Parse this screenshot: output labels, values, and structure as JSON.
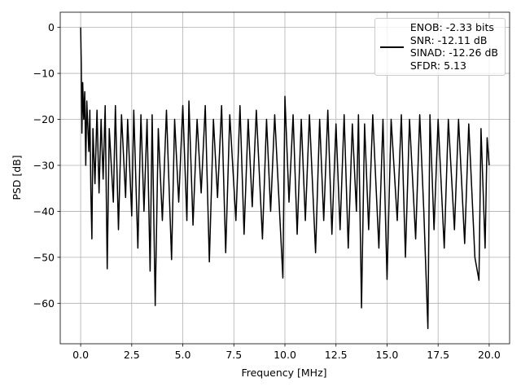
{
  "chart_data": {
    "type": "line",
    "xlabel": "Frequency [MHz]",
    "ylabel": "PSD [dB]",
    "x": [
      0,
      0.03,
      0.06,
      0.1,
      0.15,
      0.2,
      0.25,
      0.3,
      0.4,
      0.45,
      0.5,
      0.55,
      0.6,
      0.7,
      0.8,
      0.9,
      1.0,
      1.1,
      1.2,
      1.3,
      1.4,
      1.6,
      1.7,
      1.85,
      2.0,
      2.2,
      2.3,
      2.5,
      2.6,
      2.8,
      2.95,
      3.1,
      3.25,
      3.4,
      3.5,
      3.65,
      3.8,
      4.0,
      4.2,
      4.45,
      4.6,
      4.8,
      5.0,
      5.2,
      5.3,
      5.5,
      5.7,
      5.9,
      6.1,
      6.3,
      6.5,
      6.7,
      6.9,
      7.1,
      7.3,
      7.6,
      7.8,
      8.0,
      8.2,
      8.4,
      8.6,
      8.9,
      9.1,
      9.3,
      9.5,
      9.9,
      10.0,
      10.2,
      10.4,
      10.6,
      10.8,
      11.0,
      11.2,
      11.5,
      11.7,
      11.9,
      12.1,
      12.3,
      12.5,
      12.7,
      12.9,
      13.1,
      13.3,
      13.5,
      13.6,
      13.75,
      13.9,
      14.1,
      14.3,
      14.6,
      14.8,
      15.0,
      15.2,
      15.5,
      15.7,
      15.9,
      16.1,
      16.4,
      16.6,
      16.8,
      17.0,
      17.1,
      17.3,
      17.5,
      17.8,
      18.0,
      18.3,
      18.5,
      18.8,
      19.0,
      19.3,
      19.5,
      19.6,
      19.8,
      19.9,
      20.0
    ],
    "series": [
      {
        "name": "ENOB: -2.33 bits\nSNR: -12.11 dB\nSINAD: -12.26 dB\nSFDR: 5.13",
        "color": "#000000",
        "values": [
          0,
          -8,
          -23,
          -12,
          -20,
          -14,
          -30,
          -16,
          -27,
          -18,
          -36,
          -46,
          -22,
          -34,
          -18,
          -36,
          -20,
          -33,
          -17,
          -52.5,
          -22,
          -38,
          -17,
          -44,
          -19,
          -37,
          -20,
          -41,
          -18,
          -48,
          -19,
          -40,
          -20,
          -53,
          -19,
          -60.5,
          -22,
          -42,
          -18,
          -50.5,
          -20,
          -38,
          -17,
          -42,
          -16,
          -43,
          -20,
          -36,
          -17,
          -51,
          -20,
          -37,
          -17,
          -49,
          -19,
          -42,
          -17,
          -45,
          -20,
          -39,
          -18,
          -46,
          -20,
          -40,
          -19,
          -54.5,
          -15,
          -38,
          -19,
          -45,
          -20,
          -42,
          -19,
          -49,
          -20,
          -42,
          -18,
          -45,
          -21,
          -44,
          -19,
          -48,
          -21,
          -40,
          -19,
          -61,
          -21,
          -44,
          -19,
          -48,
          -20,
          -54.8,
          -20,
          -42,
          -19,
          -50,
          -20,
          -46,
          -19,
          -40,
          -65.5,
          -19,
          -44,
          -20,
          -48,
          -20,
          -44,
          -20,
          -47,
          -21,
          -50,
          -55,
          -22,
          -48,
          -24,
          -30
        ]
      }
    ],
    "xlim": [
      -1,
      21
    ],
    "ylim": [
      -68.8,
      3.3
    ],
    "xticks": [
      {
        "value": 0,
        "label": "0.0"
      },
      2.5,
      {
        "value": 5,
        "label": "5.0"
      },
      7.5,
      {
        "value": 10,
        "label": "10.0"
      },
      12.5,
      {
        "value": 15,
        "label": "15.0"
      },
      17.5,
      {
        "value": 20,
        "label": "20.0"
      }
    ],
    "yticks": [
      {
        "value": -60,
        "label": "−60"
      },
      {
        "value": -50,
        "label": "−50"
      },
      {
        "value": -40,
        "label": "−40"
      },
      {
        "value": -30,
        "label": "−30"
      },
      {
        "value": -20,
        "label": "−20"
      },
      {
        "value": -10,
        "label": "−10"
      },
      0
    ],
    "grid": true,
    "legend": "upper right"
  }
}
